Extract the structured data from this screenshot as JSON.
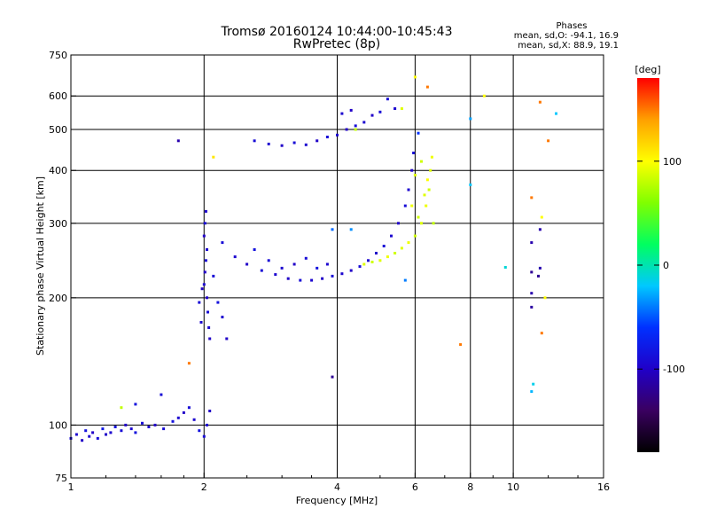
{
  "chart_data": {
    "type": "scatter",
    "title": "Tromsø 20160124 10:44:00-10:45:43",
    "subtitle": "RwPretec (8p)",
    "stats_header": "Phases",
    "stats_o": "mean, sd,O: -94.1, 16.9",
    "stats_x": "mean, sd,X: 88.9, 19.1",
    "xlabel": "Frequency [MHz]",
    "ylabel": "Stationary phase Virtual Height [km]",
    "x_scale": "log",
    "y_scale": "log",
    "xlim": [
      1,
      16
    ],
    "ylim": [
      75,
      750
    ],
    "x_ticks": [
      1,
      2,
      4,
      6,
      8,
      10,
      16
    ],
    "x_tick_labels": [
      "1",
      "2",
      "4",
      "6",
      "8",
      "10",
      "16"
    ],
    "x_gridlines": [
      2,
      4,
      6,
      8,
      10
    ],
    "y_ticks": [
      75,
      100,
      200,
      300,
      400,
      500,
      600,
      750
    ],
    "y_tick_labels": [
      "75",
      "100",
      "200",
      "300",
      "400",
      "500",
      "600",
      "750"
    ],
    "y_gridlines": [
      100,
      200,
      300,
      400,
      500,
      600
    ],
    "grid": true,
    "colorbar": {
      "label": "[deg]",
      "range": [
        -180,
        180
      ],
      "ticks": [
        100,
        0,
        -100
      ],
      "tick_labels": [
        "100",
        "0",
        "-100"
      ],
      "colors": [
        "#000000",
        "#3a0060",
        "#2000c8",
        "#0030ff",
        "#00c8ff",
        "#00ff60",
        "#80ff00",
        "#ffff00",
        "#ffa000",
        "#ff0000"
      ]
    },
    "series": [
      {
        "points": [
          [
            1.0,
            93,
            -90
          ],
          [
            1.03,
            95,
            -95
          ],
          [
            1.06,
            92,
            -100
          ],
          [
            1.08,
            97,
            -85
          ],
          [
            1.1,
            94,
            -95
          ],
          [
            1.12,
            96,
            -100
          ],
          [
            1.15,
            93,
            -90
          ],
          [
            1.18,
            98,
            -80
          ],
          [
            1.2,
            95,
            -100
          ],
          [
            1.23,
            96,
            -95
          ],
          [
            1.26,
            99,
            -85
          ],
          [
            1.3,
            97,
            -90
          ],
          [
            1.33,
            100,
            -100
          ],
          [
            1.37,
            98,
            -95
          ],
          [
            1.4,
            96,
            -85
          ],
          [
            1.45,
            101,
            -90
          ],
          [
            1.5,
            99,
            -95
          ],
          [
            1.55,
            100,
            -100
          ],
          [
            1.62,
            98,
            -90
          ],
          [
            1.7,
            102,
            -85
          ],
          [
            1.75,
            104,
            -95
          ],
          [
            1.8,
            107,
            -100
          ],
          [
            1.85,
            110,
            -90
          ],
          [
            1.9,
            103,
            -95
          ],
          [
            1.95,
            97,
            -85
          ],
          [
            2.0,
            94,
            -90
          ],
          [
            2.03,
            100,
            -95
          ],
          [
            2.06,
            108,
            -100
          ],
          [
            1.6,
            118,
            -90
          ],
          [
            1.4,
            112,
            -85
          ],
          [
            2.0,
            215,
            -95
          ],
          [
            2.01,
            230,
            -100
          ],
          [
            2.02,
            245,
            -90
          ],
          [
            2.03,
            260,
            -95
          ],
          [
            2.0,
            280,
            -100
          ],
          [
            2.01,
            300,
            -90
          ],
          [
            2.02,
            320,
            -95
          ],
          [
            2.03,
            200,
            -100
          ],
          [
            2.04,
            185,
            -90
          ],
          [
            2.05,
            170,
            -95
          ],
          [
            2.06,
            160,
            -100
          ],
          [
            1.95,
            195,
            -90
          ],
          [
            1.97,
            175,
            -95
          ],
          [
            1.98,
            210,
            -100
          ],
          [
            2.1,
            225,
            -90
          ],
          [
            2.15,
            195,
            -85
          ],
          [
            2.2,
            180,
            -95
          ],
          [
            2.25,
            160,
            -100
          ],
          [
            2.2,
            270,
            -90
          ],
          [
            2.35,
            250,
            -95
          ],
          [
            2.5,
            240,
            -100
          ],
          [
            2.7,
            232,
            -90
          ],
          [
            2.9,
            227,
            -95
          ],
          [
            3.1,
            222,
            -100
          ],
          [
            3.3,
            220,
            -90
          ],
          [
            3.5,
            220,
            -95
          ],
          [
            3.7,
            222,
            -100
          ],
          [
            3.9,
            225,
            -90
          ],
          [
            4.1,
            228,
            -95
          ],
          [
            4.3,
            232,
            -100
          ],
          [
            4.5,
            237,
            -90
          ],
          [
            4.7,
            245,
            -95
          ],
          [
            4.9,
            255,
            -100
          ],
          [
            5.1,
            265,
            -90
          ],
          [
            5.3,
            280,
            -95
          ],
          [
            5.5,
            300,
            -100
          ],
          [
            5.7,
            330,
            -90
          ],
          [
            5.8,
            360,
            -95
          ],
          [
            5.9,
            400,
            -100
          ],
          [
            5.95,
            440,
            -90
          ],
          [
            2.6,
            260,
            -85
          ],
          [
            2.8,
            245,
            -90
          ],
          [
            3.0,
            235,
            -95
          ],
          [
            3.2,
            240,
            -100
          ],
          [
            3.4,
            248,
            -90
          ],
          [
            3.6,
            235,
            -85
          ],
          [
            3.8,
            240,
            -95
          ],
          [
            2.6,
            470,
            -90
          ],
          [
            2.8,
            462,
            -95
          ],
          [
            3.0,
            458,
            -100
          ],
          [
            3.2,
            465,
            -90
          ],
          [
            3.4,
            460,
            -95
          ],
          [
            3.6,
            470,
            -100
          ],
          [
            3.8,
            480,
            -90
          ],
          [
            4.0,
            485,
            -95
          ],
          [
            4.2,
            500,
            -100
          ],
          [
            4.4,
            510,
            -90
          ],
          [
            4.6,
            520,
            -95
          ],
          [
            4.8,
            540,
            -100
          ],
          [
            5.0,
            550,
            -90
          ],
          [
            4.1,
            545,
            -95
          ],
          [
            4.3,
            555,
            -100
          ],
          [
            5.2,
            590,
            -90
          ],
          [
            5.4,
            560,
            -95
          ]
        ]
      },
      {
        "points": [
          [
            4.6,
            240,
            90
          ],
          [
            4.8,
            243,
            85
          ],
          [
            5.0,
            245,
            90
          ],
          [
            5.2,
            250,
            95
          ],
          [
            5.4,
            255,
            85
          ],
          [
            5.6,
            262,
            90
          ],
          [
            5.8,
            270,
            95
          ],
          [
            6.0,
            280,
            85
          ],
          [
            6.2,
            300,
            90
          ],
          [
            6.35,
            330,
            95
          ],
          [
            6.45,
            360,
            85
          ],
          [
            6.5,
            400,
            90
          ],
          [
            6.55,
            430,
            95
          ],
          [
            6.1,
            310,
            85
          ],
          [
            6.3,
            350,
            90
          ],
          [
            6.4,
            380,
            100
          ],
          [
            6.2,
            420,
            85
          ],
          [
            6.0,
            390,
            90
          ],
          [
            5.9,
            330,
            95
          ],
          [
            6.6,
            300,
            80
          ],
          [
            4.4,
            500,
            80
          ],
          [
            5.6,
            560,
            90
          ],
          [
            6.0,
            665,
            100
          ],
          [
            6.4,
            630,
            150
          ],
          [
            8.6,
            600,
            100
          ],
          [
            1.85,
            140,
            150
          ],
          [
            1.3,
            110,
            80
          ],
          [
            2.1,
            430,
            110
          ],
          [
            11.5,
            580,
            150
          ],
          [
            12.0,
            470,
            150
          ],
          [
            11.0,
            345,
            150
          ],
          [
            11.6,
            310,
            100
          ],
          [
            7.6,
            155,
            150
          ],
          [
            11.6,
            165,
            150
          ],
          [
            11.8,
            200,
            100
          ]
        ]
      },
      {
        "points": [
          [
            8.0,
            530,
            -30
          ],
          [
            8.0,
            370,
            -20
          ],
          [
            9.6,
            236,
            -10
          ],
          [
            12.5,
            545,
            -20
          ],
          [
            11.0,
            120,
            -25
          ],
          [
            11.1,
            125,
            -15
          ],
          [
            5.7,
            220,
            -40
          ],
          [
            6.1,
            490,
            -60
          ],
          [
            3.9,
            290,
            -45
          ],
          [
            4.3,
            290,
            -35
          ]
        ]
      },
      {
        "points": [
          [
            1.75,
            470,
            -110
          ],
          [
            3.9,
            130,
            -120
          ],
          [
            11.0,
            270,
            -110
          ],
          [
            11.0,
            230,
            -120
          ],
          [
            11.5,
            290,
            -110
          ],
          [
            11.4,
            225,
            -120
          ],
          [
            11.5,
            235,
            -110
          ],
          [
            11.0,
            205,
            -110
          ],
          [
            11.0,
            190,
            -115
          ]
        ]
      }
    ]
  }
}
